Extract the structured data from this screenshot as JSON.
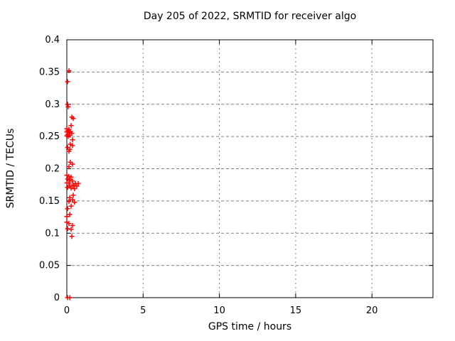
{
  "chart_data": {
    "type": "scatter",
    "title": "Day 205 of 2022, SRMTID for receiver algo",
    "xlabel": "GPS time / hours",
    "ylabel": "SRMTID / TECUs",
    "xlim": [
      0,
      24
    ],
    "ylim": [
      0,
      0.4
    ],
    "xticks": [
      0,
      5,
      10,
      15,
      20
    ],
    "yticks": [
      0,
      0.05,
      0.1,
      0.15,
      0.2,
      0.25,
      0.3,
      0.35,
      0.4
    ],
    "grid": true,
    "legend": "none",
    "marker": "plus",
    "marker_color": "#ff0000",
    "marker_size": 7,
    "grid_color": "#808080",
    "frame_color": "#000000",
    "background_color": "#ffffff",
    "series": [
      {
        "name": "SRMTID",
        "points": [
          [
            0.14,
            0.352
          ],
          [
            0.05,
            0.335
          ],
          [
            0.05,
            0.3
          ],
          [
            0.09,
            0.296
          ],
          [
            0.33,
            0.28
          ],
          [
            0.42,
            0.278
          ],
          [
            0.28,
            0.267
          ],
          [
            0.0,
            0.262
          ],
          [
            0.14,
            0.261
          ],
          [
            0.05,
            0.259
          ],
          [
            0.23,
            0.258
          ],
          [
            0.0,
            0.257
          ],
          [
            0.14,
            0.256
          ],
          [
            0.33,
            0.255
          ],
          [
            0.05,
            0.253
          ],
          [
            0.19,
            0.252
          ],
          [
            0.0,
            0.251
          ],
          [
            0.09,
            0.25
          ],
          [
            0.37,
            0.245
          ],
          [
            0.23,
            0.238
          ],
          [
            0.37,
            0.236
          ],
          [
            0.05,
            0.233
          ],
          [
            0.19,
            0.23
          ],
          [
            0.14,
            0.227
          ],
          [
            0.23,
            0.21
          ],
          [
            0.37,
            0.207
          ],
          [
            0.14,
            0.203
          ],
          [
            0.0,
            0.19
          ],
          [
            0.14,
            0.188
          ],
          [
            0.28,
            0.187
          ],
          [
            0.05,
            0.184
          ],
          [
            0.19,
            0.183
          ],
          [
            0.37,
            0.181
          ],
          [
            0.0,
            0.178
          ],
          [
            0.14,
            0.178
          ],
          [
            0.56,
            0.177
          ],
          [
            0.75,
            0.177
          ],
          [
            0.42,
            0.175
          ],
          [
            0.19,
            0.173
          ],
          [
            0.42,
            0.173
          ],
          [
            0.65,
            0.173
          ],
          [
            0.05,
            0.171
          ],
          [
            0.28,
            0.17
          ],
          [
            0.51,
            0.169
          ],
          [
            0.42,
            0.159
          ],
          [
            0.19,
            0.155
          ],
          [
            0.37,
            0.152
          ],
          [
            0.14,
            0.149
          ],
          [
            0.51,
            0.148
          ],
          [
            0.28,
            0.142
          ],
          [
            0.05,
            0.138
          ],
          [
            0.19,
            0.129
          ],
          [
            0.0,
            0.126
          ],
          [
            0.0,
            0.117
          ],
          [
            0.14,
            0.115
          ],
          [
            0.37,
            0.112
          ],
          [
            0.05,
            0.107
          ],
          [
            0.28,
            0.106
          ],
          [
            0.33,
            0.095
          ],
          [
            0.05,
            0.0
          ],
          [
            0.19,
            0.0
          ]
        ]
      }
    ]
  }
}
